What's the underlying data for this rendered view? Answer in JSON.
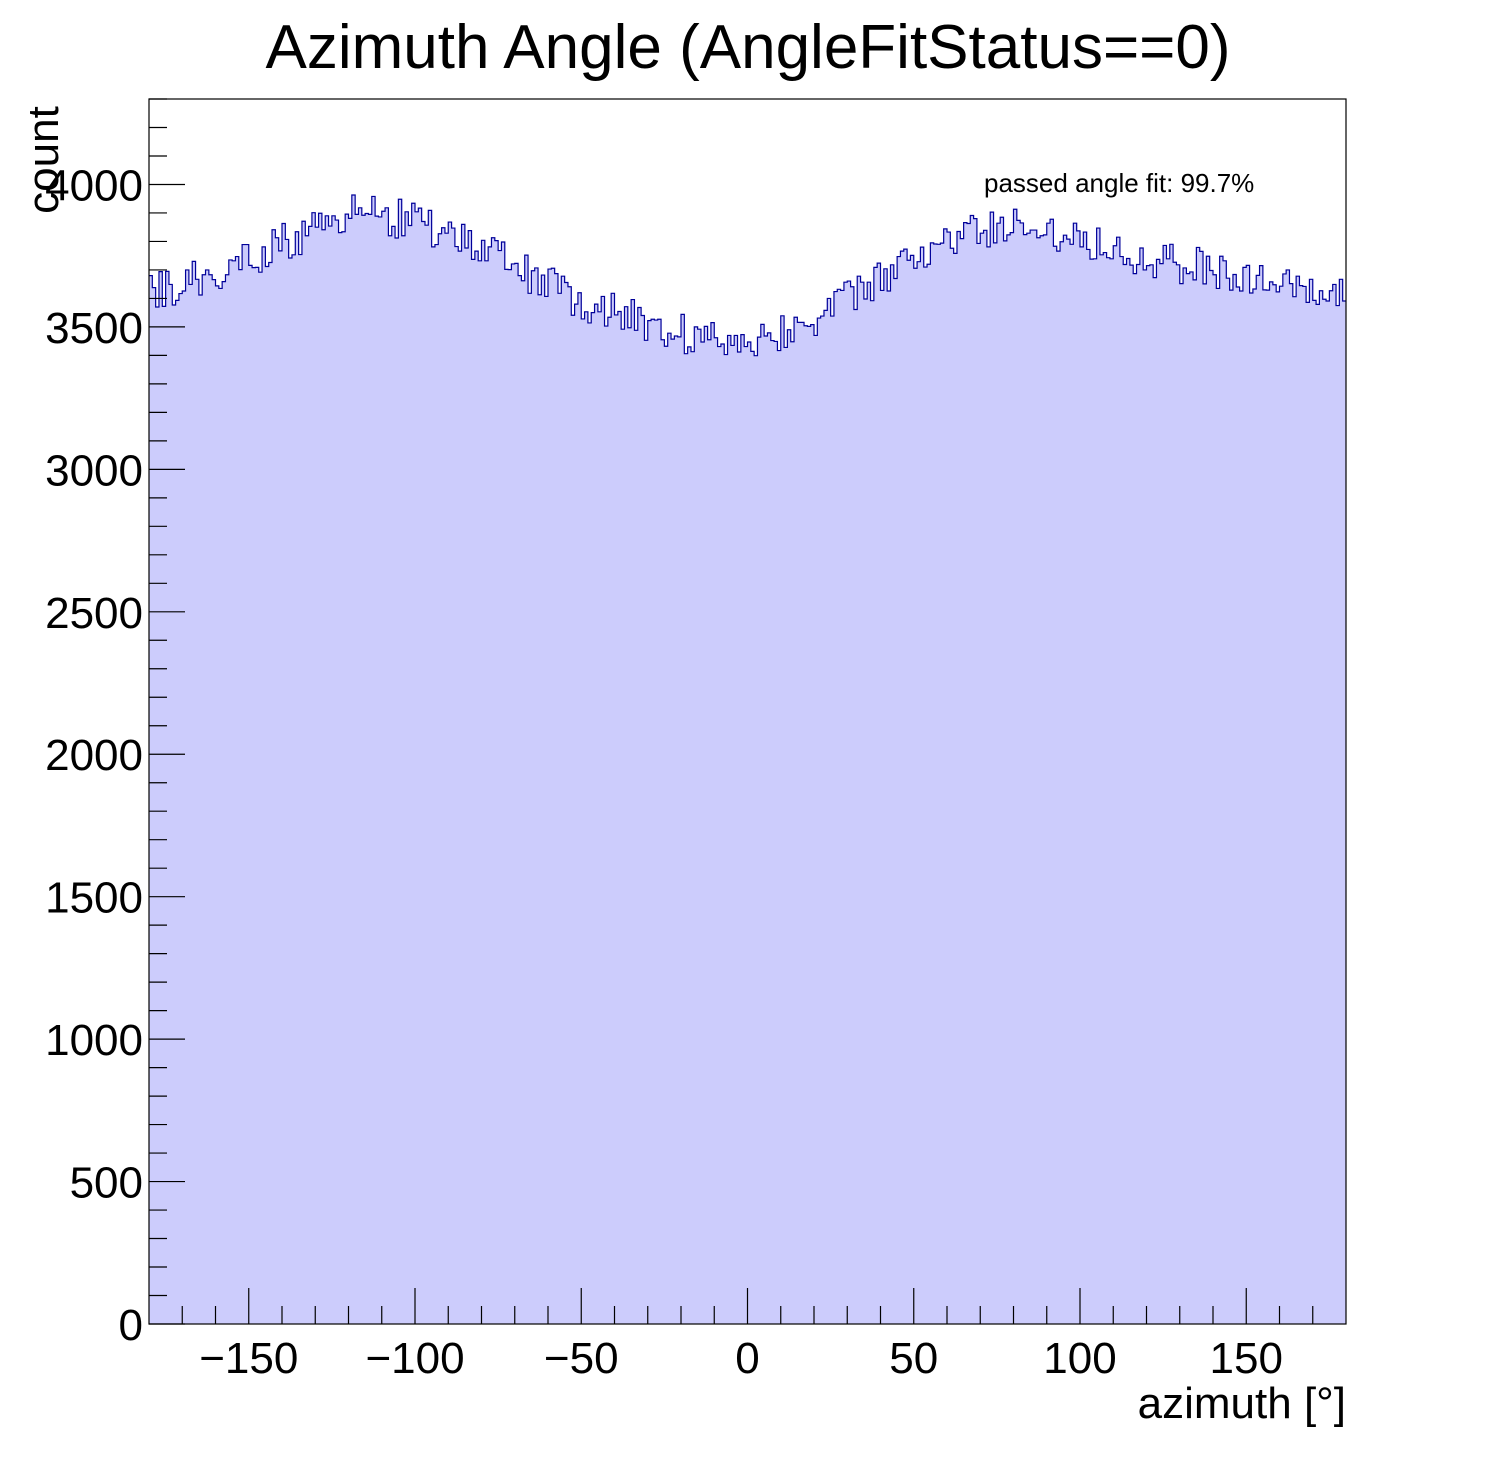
{
  "chart_data": {
    "type": "histogram",
    "title": "Azimuth Angle (AngleFitStatus==0)",
    "xlabel": "azimuth [°]",
    "ylabel": "count",
    "annotation": "passed angle fit: 99.7%",
    "xlim": [
      -180,
      180
    ],
    "ylim": [
      0,
      4300
    ],
    "x_ticks": [
      -150,
      -100,
      -50,
      0,
      50,
      100,
      150
    ],
    "x_tick_labels": [
      "−150",
      "−100",
      "−50",
      "0",
      "50",
      "100",
      "150"
    ],
    "y_ticks": [
      0,
      500,
      1000,
      1500,
      2000,
      2500,
      3000,
      3500,
      4000
    ],
    "y_tick_labels": [
      "0",
      "500",
      "1000",
      "1500",
      "2000",
      "2500",
      "3000",
      "3500",
      "4000"
    ],
    "bin_count": 360,
    "bin_width": 1,
    "fill_color": "#ccccfc",
    "line_color": "#000099",
    "profile_x": [
      -180,
      -170,
      -160,
      -150,
      -140,
      -130,
      -124,
      -115,
      -105,
      -95,
      -85,
      -75,
      -65,
      -55,
      -45,
      -35,
      -25,
      -15,
      -5,
      5,
      15,
      25,
      35,
      45,
      55,
      65,
      75,
      85,
      95,
      105,
      115,
      125,
      135,
      145,
      155,
      165,
      180
    ],
    "profile_y": [
      3610,
      3650,
      3690,
      3740,
      3790,
      3850,
      3890,
      3900,
      3880,
      3850,
      3800,
      3740,
      3680,
      3620,
      3570,
      3530,
      3500,
      3460,
      3450,
      3470,
      3500,
      3560,
      3630,
      3700,
      3770,
      3820,
      3850,
      3850,
      3830,
      3800,
      3760,
      3730,
      3710,
      3690,
      3660,
      3630,
      3600
    ]
  }
}
